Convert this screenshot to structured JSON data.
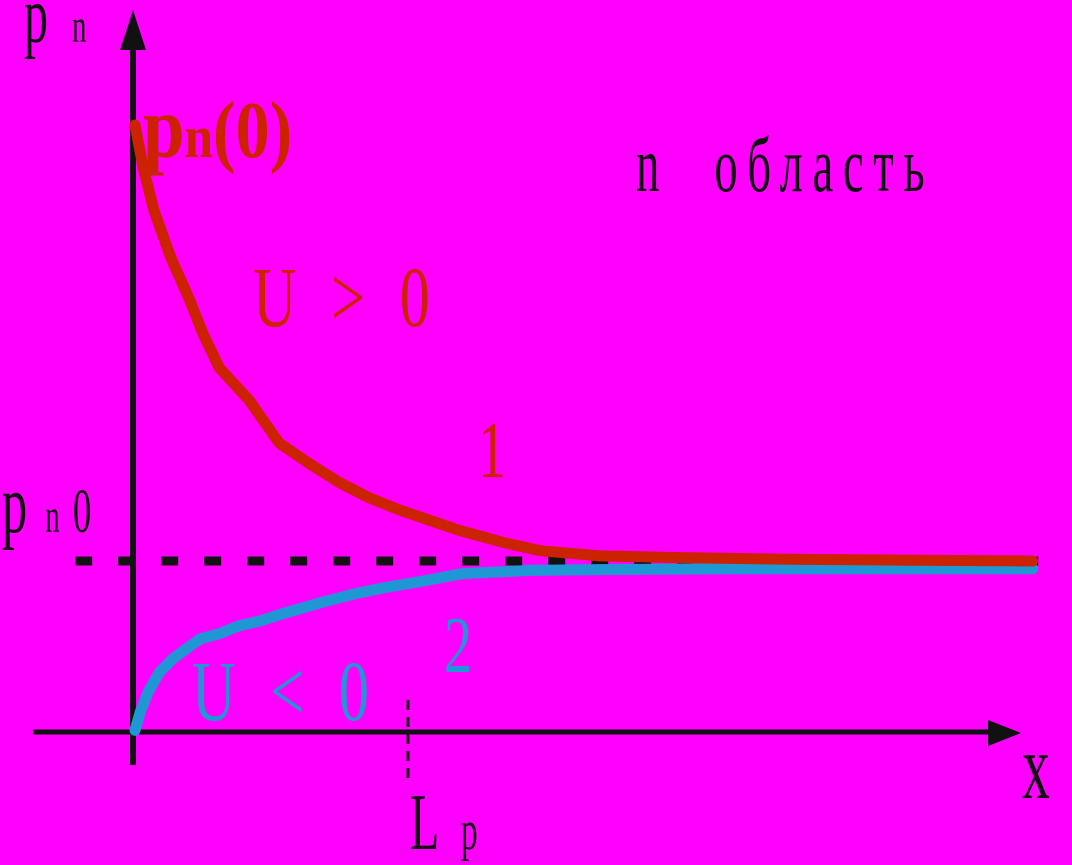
{
  "colors": {
    "background": "#ff00ff",
    "axis_and_text": "#111111",
    "curve1_red": "#cc2200",
    "curve2_blue": "#1f97d4"
  },
  "labels": {
    "y_axis": {
      "base": "p",
      "sub": "n"
    },
    "initial_value": {
      "base": "p",
      "sub": "n",
      "paren": "(0)"
    },
    "region": "n область",
    "forward_bias": "U > 0",
    "curve1_number": "1",
    "equilibrium": {
      "base": "p",
      "sub": "n",
      "zero": "0"
    },
    "reverse_bias": "U < 0",
    "curve2_number": "2",
    "diffusion_length": {
      "base": "L",
      "sub": "p"
    },
    "x_axis": "x"
  },
  "chart_data": {
    "type": "line",
    "title": "",
    "xlabel": "x",
    "ylabel": "pn",
    "region_annotation": "n область",
    "x_units": "multiples of hole diffusion length Lp (dashed vertical marker at x = Lp)",
    "y_units": "multiples of equilibrium concentration pn0 (dashed horizontal level)",
    "xlim": [
      -0.4,
      3.45
    ],
    "ylim": [
      0,
      4.3
    ],
    "grid": false,
    "key_points": {
      "pn_initial_over_pn0": 3.55,
      "pn0_level": 1.0,
      "Lp_marker_x": 1.0
    },
    "series": [
      {
        "name": "equilibrium-level-pn0",
        "style": "dashed",
        "color": "#111111",
        "width": 9,
        "dash": "17 26",
        "points": [
          [
            -0.22,
            1.0
          ],
          [
            3.36,
            1.0
          ]
        ]
      },
      {
        "name": "curve-2-reverse-bias",
        "label": "2",
        "condition": "U < 0",
        "color": "#1f97d4",
        "width": 11,
        "points": [
          [
            0,
            0.01
          ],
          [
            0.02,
            0.12
          ],
          [
            0.05,
            0.24
          ],
          [
            0.09,
            0.35
          ],
          [
            0.14,
            0.43
          ],
          [
            0.2,
            0.5
          ],
          [
            0.24,
            0.545
          ],
          [
            0.31,
            0.575
          ],
          [
            0.38,
            0.62
          ],
          [
            0.46,
            0.65
          ],
          [
            0.56,
            0.7
          ],
          [
            0.68,
            0.755
          ],
          [
            0.8,
            0.805
          ],
          [
            0.92,
            0.845
          ],
          [
            1.05,
            0.88
          ],
          [
            1.2,
            0.925
          ],
          [
            1.45,
            0.945
          ],
          [
            1.75,
            0.95
          ],
          [
            2.2,
            0.955
          ],
          [
            2.8,
            0.955
          ],
          [
            3.3,
            0.955
          ]
        ]
      },
      {
        "name": "curve-1-forward-bias",
        "label": "1",
        "condition": "U > 0",
        "color": "#cc2200",
        "width": 11,
        "points": [
          [
            0,
            3.55
          ],
          [
            0.03,
            3.3
          ],
          [
            0.07,
            3.05
          ],
          [
            0.13,
            2.78
          ],
          [
            0.2,
            2.53
          ],
          [
            0.25,
            2.33
          ],
          [
            0.31,
            2.13
          ],
          [
            0.42,
            1.94
          ],
          [
            0.53,
            1.69
          ],
          [
            0.64,
            1.57
          ],
          [
            0.75,
            1.46
          ],
          [
            0.86,
            1.37
          ],
          [
            0.97,
            1.3
          ],
          [
            1.08,
            1.24
          ],
          [
            1.19,
            1.18
          ],
          [
            1.35,
            1.11
          ],
          [
            1.49,
            1.06
          ],
          [
            1.71,
            1.03
          ],
          [
            2.0,
            1.02
          ],
          [
            2.4,
            1.01
          ],
          [
            2.8,
            1.005
          ],
          [
            3.3,
            1.0
          ]
        ]
      }
    ]
  }
}
